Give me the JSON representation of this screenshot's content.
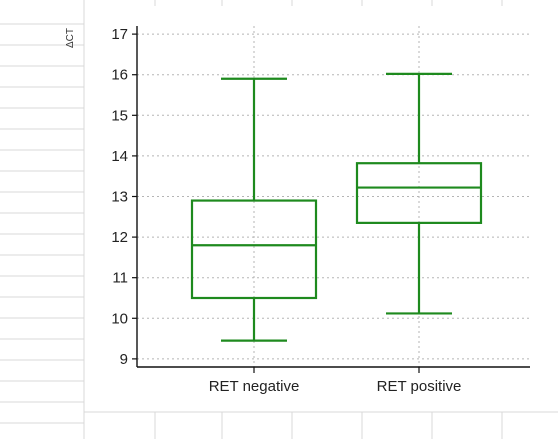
{
  "chart_data": {
    "type": "box",
    "ylabel": "ΔCT",
    "xlabel": "",
    "title": "",
    "ylim": [
      8.8,
      17.2
    ],
    "yticks": [
      9,
      10,
      11,
      12,
      13,
      14,
      15,
      16,
      17
    ],
    "grid": true,
    "categories": [
      "RET negative",
      "RET positive"
    ],
    "boxes": [
      {
        "category": "RET negative",
        "min": 9.45,
        "q1": 10.5,
        "median": 11.8,
        "q3": 12.9,
        "max": 15.9
      },
      {
        "category": "RET positive",
        "min": 10.12,
        "q1": 12.35,
        "median": 13.22,
        "q3": 13.82,
        "max": 16.02
      }
    ],
    "colors": {
      "box": "#1e8a1e",
      "grid": "#b5b5b5",
      "axis": "#111111",
      "sheet_lines": "#d9d9d9"
    }
  }
}
